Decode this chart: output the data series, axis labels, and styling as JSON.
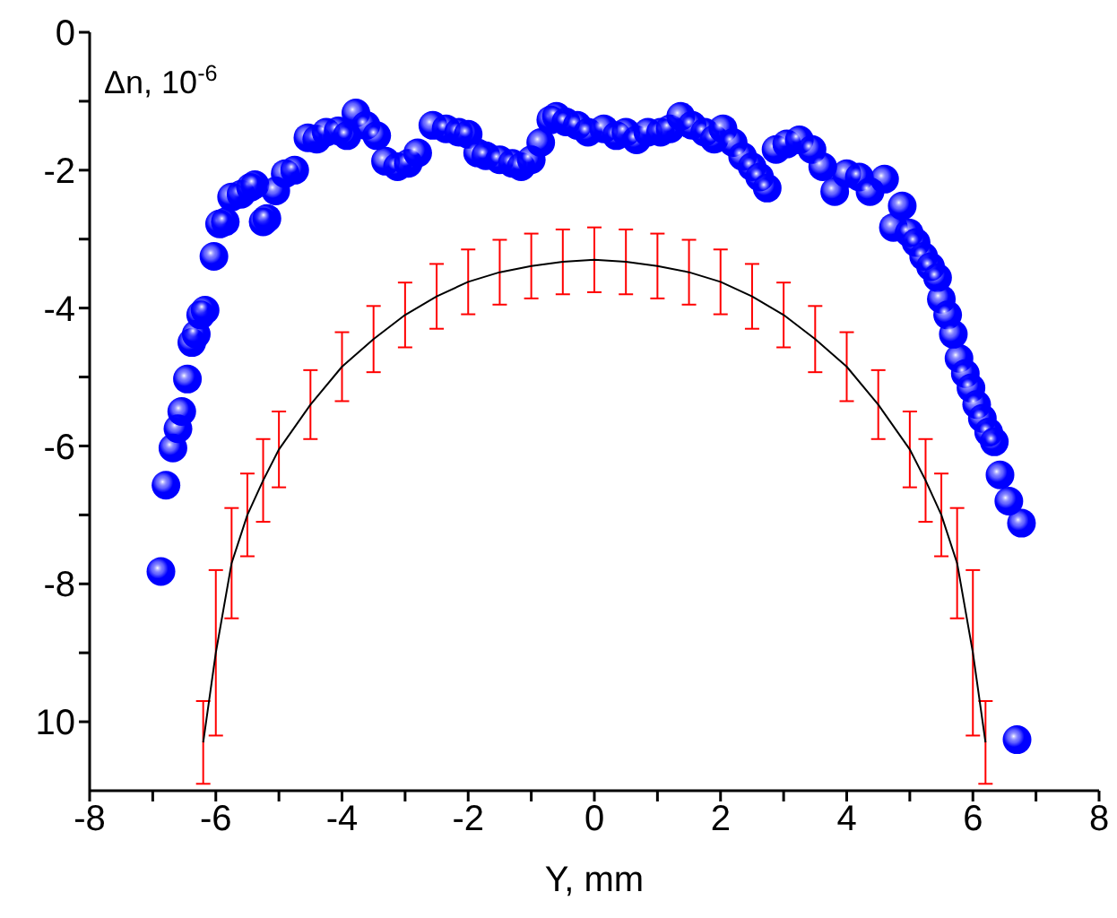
{
  "chart_data": {
    "type": "scatter",
    "xlabel": "Y, mm",
    "ylabel": "Δn, 10$^{-6}$",
    "xlim": [
      -8,
      8
    ],
    "xticks": [
      -8,
      {
        "value": -7,
        "label": null
      },
      -6,
      {
        "value": -5,
        "label": null
      },
      -4,
      {
        "value": -3,
        "label": null
      },
      -2,
      {
        "value": -1,
        "label": null
      },
      0,
      {
        "value": 1,
        "label": null
      },
      2,
      {
        "value": 3,
        "label": null
      },
      4,
      {
        "value": 5,
        "label": null
      },
      6,
      {
        "value": 7,
        "label": null
      },
      8
    ],
    "ylim": [
      -11,
      0
    ],
    "yticks": [
      {
        "value": -10,
        "label": "10"
      },
      {
        "value": -9,
        "label": null
      },
      -8,
      {
        "value": -7,
        "label": null
      },
      -6,
      {
        "value": -5,
        "label": null
      },
      -4,
      {
        "value": -3,
        "label": null
      },
      -2,
      {
        "value": -1,
        "label": null
      },
      0
    ],
    "grid": false,
    "legend": false,
    "series": [
      {
        "marker": "circle",
        "color": "#0000ff",
        "x": [
          -6.87,
          -6.79,
          -6.68,
          -6.6,
          -6.54,
          -6.45,
          -6.38,
          -6.31,
          -6.24,
          -6.17,
          -6.03,
          -5.94,
          -5.85,
          -5.75,
          -5.6,
          -5.45,
          -5.38,
          -5.25,
          -5.19,
          -5.05,
          -4.9,
          -4.75,
          -4.54,
          -4.4,
          -4.25,
          -4.06,
          -3.92,
          -3.78,
          -3.62,
          -3.45,
          -3.31,
          -3.12,
          -2.95,
          -2.8,
          -2.56,
          -2.35,
          -2.15,
          -2.0,
          -1.85,
          -1.72,
          -1.5,
          -1.3,
          -1.16,
          -1.0,
          -0.85,
          -0.69,
          -0.6,
          -0.45,
          -0.27,
          -0.1,
          0.15,
          0.35,
          0.5,
          0.67,
          0.85,
          1.05,
          1.2,
          1.37,
          1.55,
          1.75,
          1.9,
          2.04,
          2.2,
          2.35,
          2.5,
          2.62,
          2.74,
          2.88,
          3.05,
          3.25,
          3.45,
          3.62,
          3.81,
          4.0,
          4.2,
          4.37,
          4.6,
          4.74,
          4.88,
          4.99,
          5.1,
          5.22,
          5.33,
          5.44,
          5.5,
          5.6,
          5.69,
          5.78,
          5.88,
          5.97,
          6.06,
          6.15,
          6.25,
          6.34,
          6.43,
          6.57,
          6.77,
          6.7
        ],
        "values": [
          -7.82,
          -6.57,
          -6.03,
          -5.75,
          -5.5,
          -5.03,
          -4.5,
          -4.38,
          -4.1,
          -4.03,
          -3.25,
          -2.78,
          -2.75,
          -2.39,
          -2.35,
          -2.25,
          -2.21,
          -2.75,
          -2.7,
          -2.3,
          -2.05,
          -2.0,
          -1.53,
          -1.55,
          -1.45,
          -1.43,
          -1.5,
          -1.17,
          -1.35,
          -1.5,
          -1.87,
          -1.95,
          -1.9,
          -1.75,
          -1.35,
          -1.4,
          -1.45,
          -1.48,
          -1.75,
          -1.79,
          -1.85,
          -1.9,
          -1.95,
          -1.85,
          -1.6,
          -1.27,
          -1.22,
          -1.3,
          -1.35,
          -1.45,
          -1.4,
          -1.5,
          -1.45,
          -1.56,
          -1.45,
          -1.45,
          -1.4,
          -1.22,
          -1.35,
          -1.45,
          -1.55,
          -1.4,
          -1.6,
          -1.8,
          -1.95,
          -2.1,
          -2.26,
          -1.7,
          -1.62,
          -1.56,
          -1.7,
          -1.95,
          -2.31,
          -2.05,
          -2.1,
          -2.31,
          -2.13,
          -2.83,
          -2.52,
          -2.91,
          -3.05,
          -3.25,
          -3.4,
          -3.56,
          -3.87,
          -4.1,
          -4.38,
          -4.73,
          -4.95,
          -5.16,
          -5.4,
          -5.6,
          -5.8,
          -5.94,
          -6.42,
          -6.8,
          -7.12,
          -10.26
        ]
      },
      {
        "type": "line",
        "marker": "none",
        "color": "#000000",
        "x": [
          -6.2,
          -6.0,
          -5.75,
          -5.5,
          -5.25,
          -5.0,
          -4.5,
          -4.0,
          -3.5,
          -3.0,
          -2.5,
          -2.0,
          -1.5,
          -1.0,
          -0.5,
          0,
          0.5,
          1.0,
          1.5,
          2.0,
          2.5,
          3.0,
          3.5,
          4.0,
          4.5,
          5.0,
          5.25,
          5.5,
          5.75,
          6.0,
          6.2
        ],
        "values": [
          -10.3,
          -9.0,
          -7.7,
          -7.0,
          -6.5,
          -6.05,
          -5.4,
          -4.85,
          -4.45,
          -4.1,
          -3.83,
          -3.62,
          -3.48,
          -3.39,
          -3.33,
          -3.3,
          -3.33,
          -3.39,
          -3.48,
          -3.62,
          -3.83,
          -4.1,
          -4.45,
          -4.85,
          -5.4,
          -6.05,
          -6.5,
          -7.0,
          -7.7,
          -9.0,
          -10.3
        ],
        "errors": [
          0.6,
          1.2,
          0.8,
          0.6,
          0.6,
          0.55,
          0.5,
          0.5,
          0.48,
          0.47,
          0.47,
          0.47,
          0.47,
          0.47,
          0.47,
          0.47,
          0.47,
          0.47,
          0.47,
          0.47,
          0.47,
          0.47,
          0.48,
          0.5,
          0.5,
          0.55,
          0.6,
          0.6,
          0.8,
          1.2,
          0.6
        ]
      }
    ]
  }
}
